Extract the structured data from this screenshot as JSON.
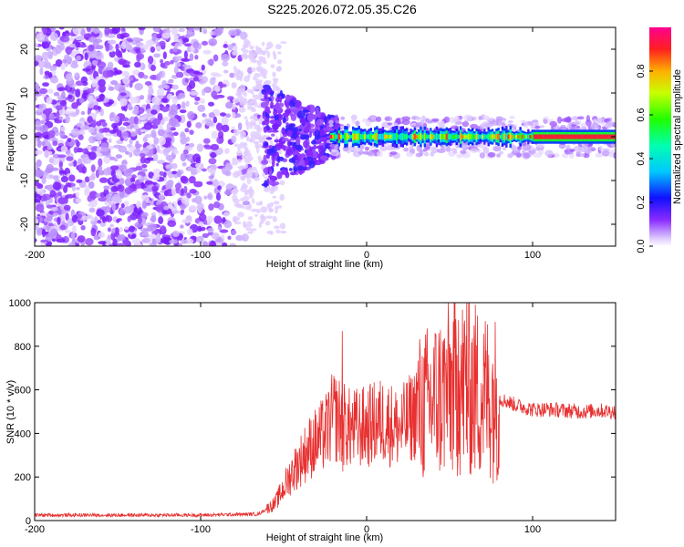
{
  "title": "S225.2026.072.05.35.C26",
  "chart_data": [
    {
      "type": "heatmap",
      "xlabel": "Height of straight line (km)",
      "ylabel": "Frequency (Hz)",
      "xlim": [
        -200,
        150
      ],
      "ylim": [
        -25,
        25
      ],
      "xticks": [
        "-200",
        "-100",
        "0",
        "100"
      ],
      "yticks": [
        "20",
        "10",
        "0",
        "-10",
        "-20"
      ],
      "colorbar": {
        "label": "Normalized spectral amplitude",
        "ticks": [
          "0.0",
          "0.2",
          "0.4",
          "0.6",
          "0.8"
        ],
        "range": [
          0,
          1
        ]
      },
      "regions": [
        {
          "name": "noise field",
          "x": [
            -200,
            -60
          ],
          "freq": [
            -25,
            25
          ],
          "amplitude": 0.08
        },
        {
          "name": "transition scatter",
          "x": [
            -60,
            -20
          ],
          "freq": [
            -12,
            10
          ],
          "amplitude": 0.15
        },
        {
          "name": "signal band",
          "x": [
            -20,
            150
          ],
          "freq": [
            -3,
            3
          ],
          "amplitude": 0.9
        }
      ]
    },
    {
      "type": "line",
      "xlabel": "Height of straight line (km)",
      "ylabel": "SNR (10 * v/v)",
      "xlim": [
        -200,
        150
      ],
      "ylim": [
        0,
        1000
      ],
      "xticks": [
        "-200",
        "-100",
        "0",
        "100"
      ],
      "yticks": [
        "0",
        "200",
        "400",
        "600",
        "800",
        "1000"
      ],
      "color": "#e83030",
      "envelope_points": [
        [
          -200,
          25
        ],
        [
          -150,
          25
        ],
        [
          -100,
          25
        ],
        [
          -65,
          30
        ],
        [
          -55,
          80
        ],
        [
          -45,
          220
        ],
        [
          -35,
          330
        ],
        [
          -25,
          400
        ],
        [
          -20,
          480
        ],
        [
          -10,
          420
        ],
        [
          0,
          430
        ],
        [
          10,
          460
        ],
        [
          20,
          420
        ],
        [
          30,
          500
        ],
        [
          40,
          550
        ],
        [
          50,
          600
        ],
        [
          60,
          620
        ],
        [
          70,
          580
        ],
        [
          80,
          560
        ],
        [
          90,
          530
        ],
        [
          100,
          510
        ],
        [
          110,
          510
        ],
        [
          120,
          505
        ],
        [
          130,
          500
        ],
        [
          140,
          505
        ],
        [
          150,
          500
        ]
      ],
      "peaks": [
        [
          -15,
          870
        ],
        [
          55,
          920
        ],
        [
          60,
          1000
        ]
      ]
    }
  ]
}
